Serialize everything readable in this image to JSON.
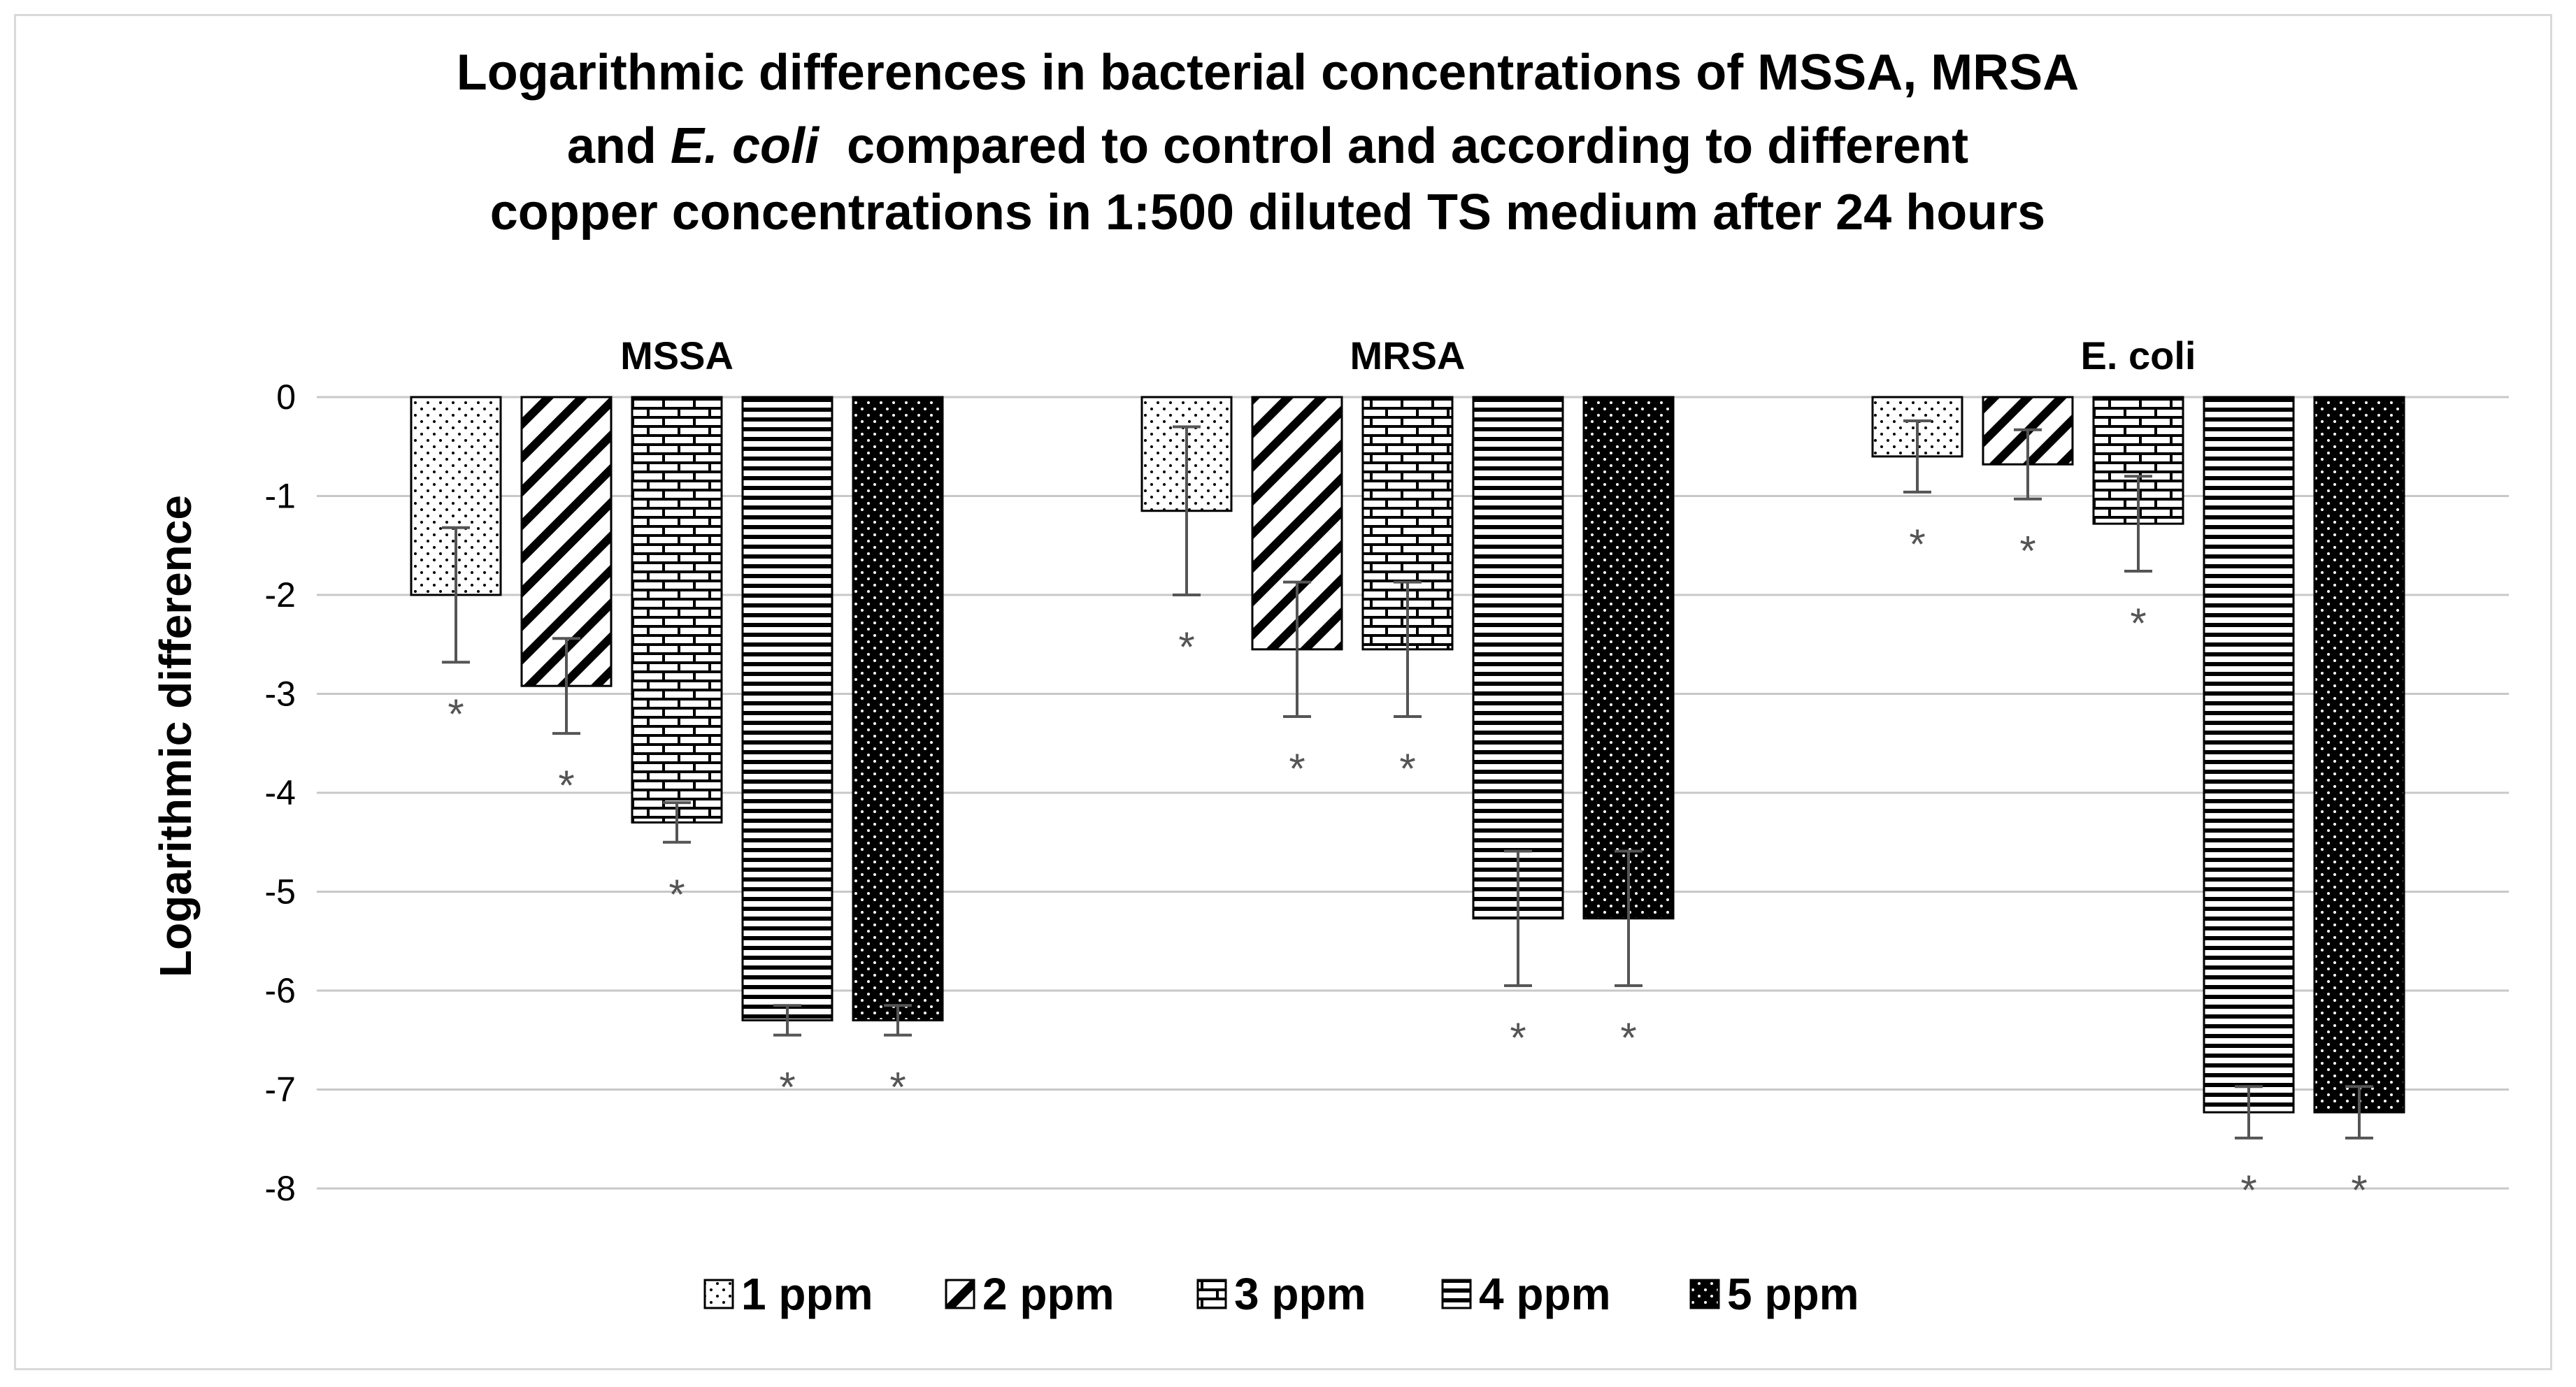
{
  "chart_data": {
    "type": "bar",
    "title": {
      "line1": "Logarithmic differences in bacterial concentrations of MSSA, MRSA",
      "line2_a": "and ",
      "line2_italic": "E. coli",
      "line2_b": "  compared to control and according to different",
      "line3": "copper concentrations in 1:500  diluted TS medium  after 24 hours"
    },
    "ylabel": "Logarithmic difference",
    "ylim": [
      -8,
      0
    ],
    "yticks": [
      0,
      -1,
      -2,
      -3,
      -4,
      -5,
      -6,
      -7,
      -8
    ],
    "grid": true,
    "categories": [
      "MSSA",
      "MRSA",
      "E. coli"
    ],
    "series": [
      {
        "name": "1 ppm",
        "pattern": "dots",
        "values": [
          -2.0,
          -1.15,
          -0.6
        ],
        "errors": [
          0.68,
          0.85,
          0.36
        ]
      },
      {
        "name": "2 ppm",
        "pattern": "diagonal",
        "values": [
          -2.92,
          -2.55,
          -0.68
        ],
        "errors": [
          0.48,
          0.68,
          0.35
        ]
      },
      {
        "name": "3 ppm",
        "pattern": "brick",
        "values": [
          -4.3,
          -2.55,
          -1.28
        ],
        "errors": [
          0.2,
          0.68,
          0.48
        ]
      },
      {
        "name": "4 ppm",
        "pattern": "horizontal",
        "values": [
          -6.3,
          -5.27,
          -7.23
        ],
        "errors": [
          0.15,
          0.68,
          0.26
        ]
      },
      {
        "name": "5 ppm",
        "pattern": "dark-dots",
        "values": [
          -6.3,
          -5.27,
          -7.23
        ],
        "errors": [
          0.15,
          0.68,
          0.26
        ]
      }
    ],
    "significance_marker": "*",
    "legend_position": "bottom"
  }
}
